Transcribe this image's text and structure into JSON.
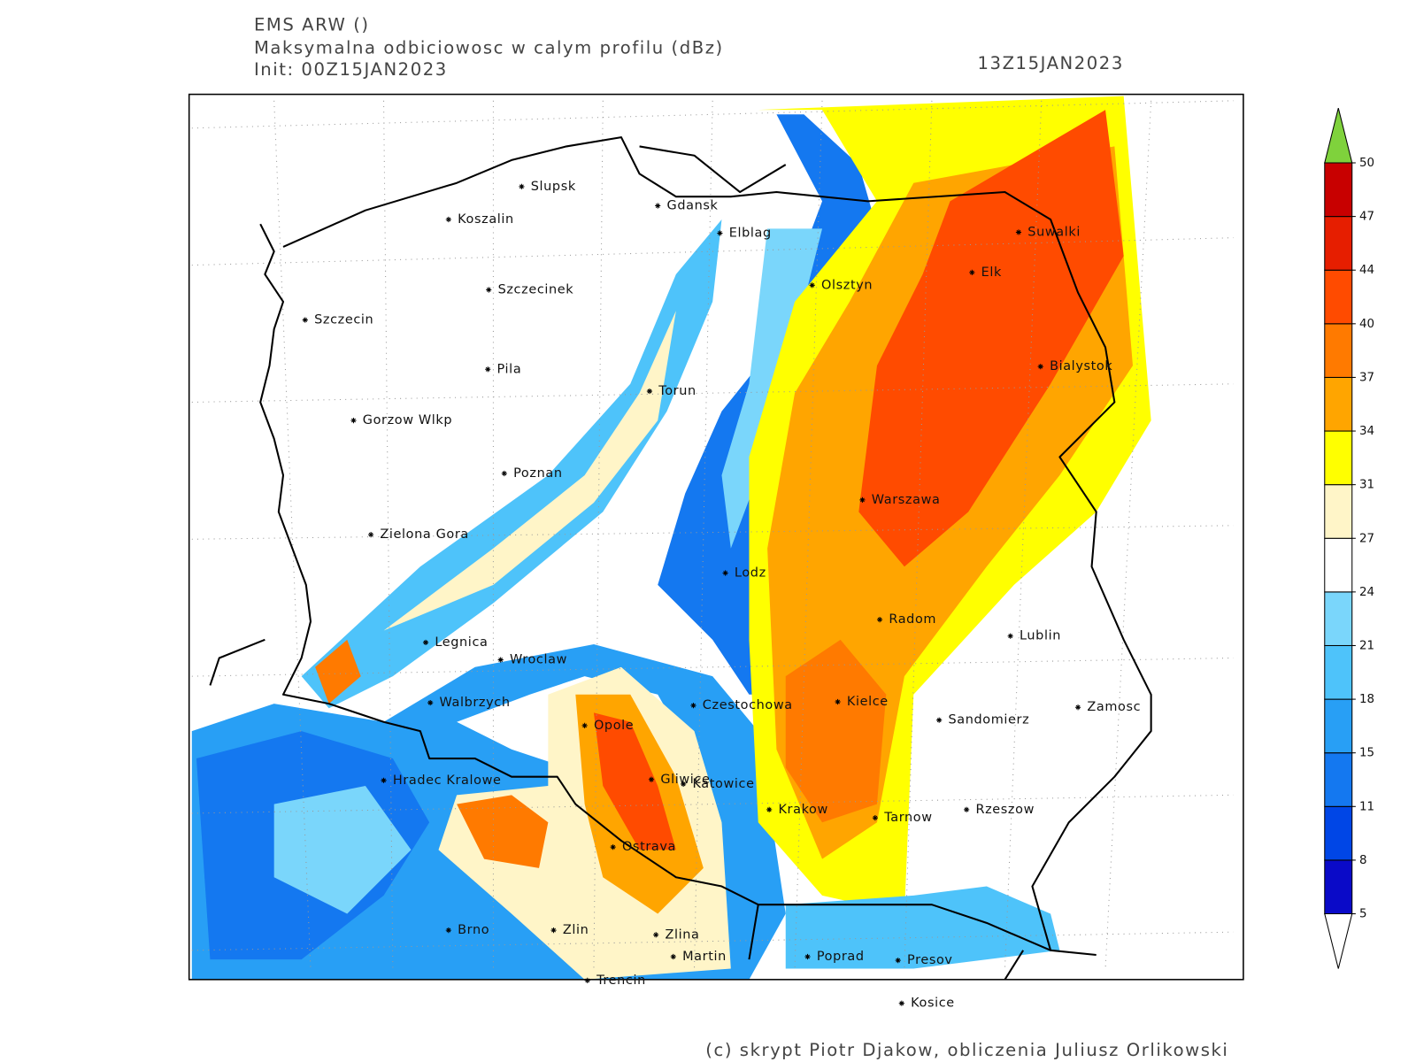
{
  "header": {
    "model": "EMS ARW ()",
    "field": "Maksymalna odbiciowosc w calym profilu (dBz)",
    "init": "Init: 00Z15JAN2023",
    "valid": "13Z15JAN2023"
  },
  "cities": [
    "Slupsk",
    "Koszalin",
    "Gdansk",
    "Elblag",
    "Suwalki",
    "Szczecinek",
    "Olsztyn",
    "Elk",
    "Szczecin",
    "Pila",
    "Torun",
    "Bialystok",
    "Gorzow Wlkp",
    "Poznan",
    "Warszawa",
    "Zielona Gora",
    "Lodz",
    "Radom",
    "Lublin",
    "Legnica",
    "Wroclaw",
    "Walbrzych",
    "Czestochowa",
    "Kielce",
    "Zamosc",
    "Sandomierz",
    "Opole",
    "Hradec Kralowe",
    "Gliwice",
    "Katowice",
    "Krakow",
    "Rzeszow",
    "Tarnow",
    "Ostrava",
    "Brno",
    "Zlin",
    "Zlina",
    "Martin",
    "Poprad",
    "Presov",
    "Trencin",
    "Kosice"
  ],
  "colorbar": {
    "ticks": [
      5,
      8,
      11,
      15,
      18,
      21,
      24,
      27,
      31,
      34,
      37,
      40,
      44,
      47,
      50
    ],
    "colors": [
      "#0a0ac8",
      "#0046e6",
      "#1478f0",
      "#289ff5",
      "#4ec3fa",
      "#7ad6fb",
      "#ffffff",
      "#fff5c8",
      "#ffff00",
      "#ffa500",
      "#ff7a00",
      "#ff4b00",
      "#e61e00",
      "#c80000"
    ],
    "over_color": "#7fd23c",
    "under_color": "#ffffff"
  },
  "footer": "(c) skrypt Piotr Djakow, obliczenia Juliusz Orlikowski"
}
